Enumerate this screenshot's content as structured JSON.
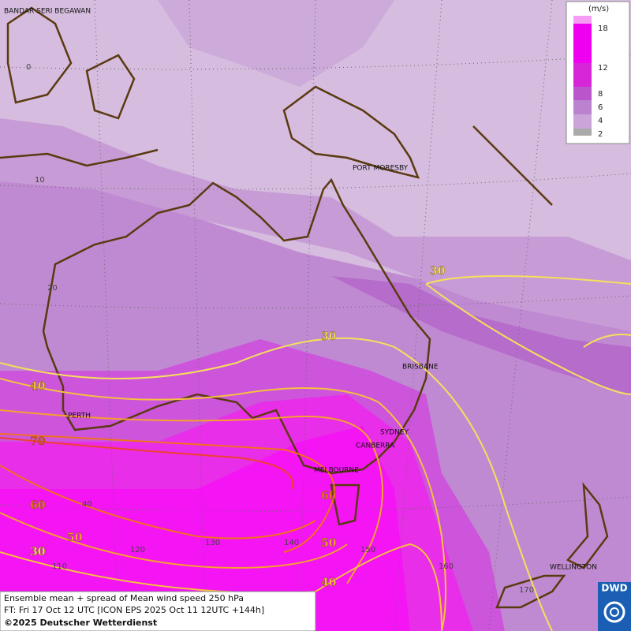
{
  "map": {
    "cities": [
      "BANDAR SERI BEGAWAN",
      "PORT MORESBY",
      "BRISBANE",
      "PERTH",
      "SYDNEY",
      "CANBERRA",
      "MELBOURNE",
      "WELLINGTON"
    ],
    "grid_labels": [
      "0",
      "10",
      "20",
      "40",
      "110",
      "120",
      "130",
      "140",
      "150",
      "160",
      "170"
    ],
    "contour_labels": [
      "30",
      "30",
      "40",
      "70",
      "60",
      "50",
      "30",
      "60",
      "50",
      "40"
    ],
    "legend": {
      "unit": "(m/s)",
      "ticks": [
        "18",
        "12",
        "8",
        "6",
        "4",
        "2"
      ]
    },
    "caption": [
      "Ensemble mean + spread of Mean wind speed 250 hPa",
      "FT: Fri 17 Oct 12 UTC [ICON EPS 2025 Oct 11 12UTC +144h]",
      "©2025 Deutscher Wetterdienst"
    ],
    "logo": "DWD"
  }
}
